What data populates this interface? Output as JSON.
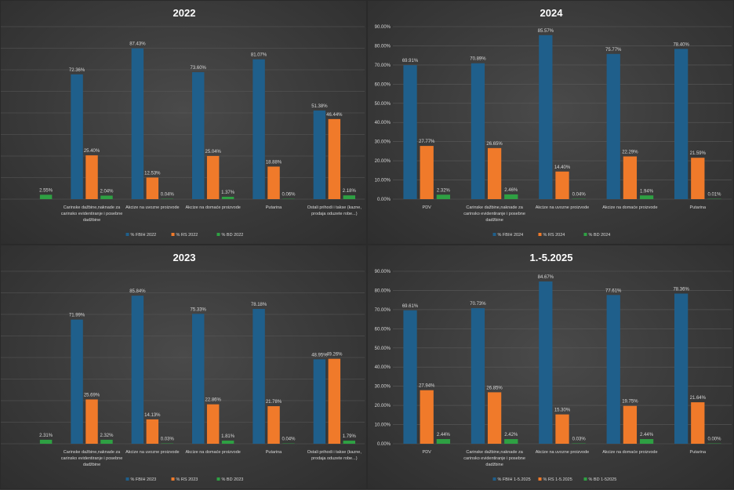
{
  "colors": {
    "fbih": "#1f5f8b",
    "rs": "#f07a2a",
    "bd": "#2ea043"
  },
  "chart_data": [
    {
      "type": "bar",
      "title": "2022",
      "show_y_axis": false,
      "categories": [
        "",
        [
          "Carinske dažbine,naknade za",
          "carinsko evidentiranje i posebne",
          "dadžbine"
        ],
        [
          "Akcize na uvozne proizvode"
        ],
        [
          "Akcize na domaće proizvode"
        ],
        [
          "Putarina"
        ],
        [
          "Ostali prihodi i takse (kazne,",
          "prodaja oduzete robe...)"
        ]
      ],
      "series": [
        {
          "name": "% FBIH 2022",
          "values": [
            null,
            72.36,
            87.43,
            73.6,
            81.07,
            51.38
          ],
          "labels": [
            "",
            "72.36%",
            "87.43%",
            "73.60%",
            "81.07%",
            "51.38%"
          ]
        },
        {
          "name": "% RS 2022",
          "values": [
            null,
            25.4,
            12.53,
            25.04,
            18.88,
            46.44
          ],
          "labels": [
            "",
            "25.40%",
            "12.53%",
            "25.04%",
            "18.88%",
            "46.44%"
          ]
        },
        {
          "name": "% BD 2022",
          "values": [
            2.55,
            2.04,
            0.04,
            1.37,
            0.06,
            2.18
          ],
          "labels": [
            "2.55%",
            "2.04%",
            "0.04%",
            "1.37%",
            "0.06%",
            "2.18%"
          ]
        }
      ],
      "ylim": [
        0,
        100
      ]
    },
    {
      "type": "bar",
      "title": "2024",
      "show_y_axis": true,
      "yticks": [
        "0.00%",
        "10.00%",
        "20.00%",
        "30.00%",
        "40.00%",
        "50.00%",
        "60.00%",
        "70.00%",
        "80.00%",
        "90.00%"
      ],
      "categories": [
        [
          "PDV"
        ],
        [
          "Carinske dažbine,naknade za",
          "carinsko evidentiranje i posebne",
          "dadžbine"
        ],
        [
          "Akcize na uvozne proizvode"
        ],
        [
          "Akcize na domaće proizvode"
        ],
        [
          "Putarina"
        ]
      ],
      "series": [
        {
          "name": "% FBIH 2024",
          "values": [
            69.91,
            70.89,
            85.57,
            75.77,
            78.4
          ],
          "labels": [
            "69.91%",
            "70.89%",
            "85.57%",
            "75.77%",
            "78.40%"
          ]
        },
        {
          "name": "% RS 2024",
          "values": [
            27.77,
            26.65,
            14.4,
            22.29,
            21.59
          ],
          "labels": [
            "27.77%",
            "26.65%",
            "14.40%",
            "22.29%",
            "21.59%"
          ]
        },
        {
          "name": "% BD 2024",
          "values": [
            2.32,
            2.46,
            0.04,
            1.94,
            0.01
          ],
          "labels": [
            "2.32%",
            "2.46%",
            "0.04%",
            "1.94%",
            "0.01%"
          ]
        }
      ],
      "ylim": [
        0,
        90
      ]
    },
    {
      "type": "bar",
      "title": "2023",
      "show_y_axis": false,
      "categories": [
        "",
        [
          "Carinske dažbine,naknade za",
          "carinsko evidentiranje i posebne",
          "dadžbine"
        ],
        [
          "Akcize na uvozne proizvode"
        ],
        [
          "Akcize na domaće proizvode"
        ],
        [
          "Putarina"
        ],
        [
          "Ostali prihodi i takse (kazne,",
          "prodaja oduzete robe...)"
        ]
      ],
      "series": [
        {
          "name": "% FBIH 2023",
          "values": [
            null,
            71.99,
            85.84,
            75.33,
            78.18,
            48.95
          ],
          "labels": [
            "",
            "71.99%",
            "85.84%",
            "75.33%",
            "78.18%",
            "48.95%"
          ]
        },
        {
          "name": "% RS 2023",
          "values": [
            null,
            25.69,
            14.13,
            22.86,
            21.78,
            49.26
          ],
          "labels": [
            "",
            "25.69%",
            "14.13%",
            "22.86%",
            "21.78%",
            "49.26%"
          ]
        },
        {
          "name": "% BD 2023",
          "values": [
            2.31,
            2.32,
            0.03,
            1.81,
            0.04,
            1.79
          ],
          "labels": [
            "2.31%",
            "2.32%",
            "0.03%",
            "1.81%",
            "0.04%",
            "1.79%"
          ]
        }
      ],
      "ylim": [
        0,
        100
      ]
    },
    {
      "type": "bar",
      "title": "1.-5.2025",
      "show_y_axis": true,
      "yticks": [
        "0.00%",
        "10.00%",
        "20.00%",
        "30.00%",
        "40.00%",
        "50.00%",
        "60.00%",
        "70.00%",
        "80.00%",
        "90.00%"
      ],
      "categories": [
        [
          "PDV"
        ],
        [
          "Carinske dažbine,naknade za",
          "carinsko evidentiranje i posebne",
          "dadžbine"
        ],
        [
          "Akcize na uvozne proizvode"
        ],
        [
          "Akcize na domaće proizvode"
        ],
        [
          "Putarina"
        ]
      ],
      "series": [
        {
          "name": "% FBIH 1-5.2025",
          "values": [
            69.61,
            70.73,
            84.67,
            77.61,
            78.36
          ],
          "labels": [
            "69.61%",
            "70.73%",
            "84.67%",
            "77.61%",
            "78.36%"
          ]
        },
        {
          "name": "% RS 1-5.2025",
          "values": [
            27.94,
            26.85,
            15.3,
            19.75,
            21.64
          ],
          "labels": [
            "27.94%",
            "26.85%",
            "15.30%",
            "19.75%",
            "21.64%"
          ]
        },
        {
          "name": "% BD 1-52025",
          "values": [
            2.44,
            2.42,
            0.03,
            2.44,
            0.0
          ],
          "labels": [
            "2.44%",
            "2.42%",
            "0.03%",
            "2.44%",
            "0.00%"
          ]
        }
      ],
      "ylim": [
        0,
        90
      ]
    }
  ]
}
